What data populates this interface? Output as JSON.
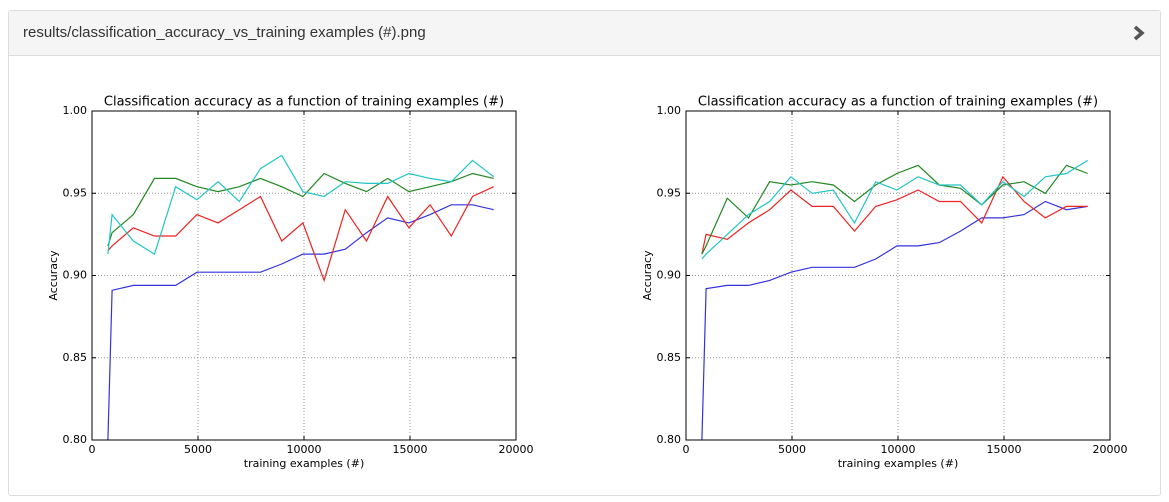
{
  "header": {
    "title": "results/classification_accuracy_vs_training examples (#).png"
  },
  "chart_data": [
    {
      "type": "line",
      "title": "Classification accuracy as a function of training examples (#)",
      "x_label": "training examples (#)",
      "y_label": "Accuracy",
      "x": [
        750,
        950,
        1950,
        2950,
        3950,
        4950,
        5950,
        6950,
        7950,
        8950,
        9950,
        10950,
        11950,
        12950,
        13950,
        14950,
        15950,
        16950,
        17950,
        18950
      ],
      "series": [
        {
          "color": "#3333dd",
          "values": [
            0.8,
            0.891,
            0.894,
            0.894,
            0.894,
            0.902,
            0.902,
            0.902,
            0.902,
            0.907,
            0.913,
            0.913,
            0.916,
            0.926,
            0.935,
            0.932,
            0.937,
            0.943,
            0.943,
            0.94
          ]
        },
        {
          "color": "#ee2222",
          "values": [
            0.915,
            0.918,
            0.929,
            0.924,
            0.924,
            0.937,
            0.932,
            0.94,
            0.948,
            0.921,
            0.932,
            0.897,
            0.94,
            0.921,
            0.948,
            0.929,
            0.943,
            0.924,
            0.948,
            0.954
          ]
        },
        {
          "color": "#228822",
          "values": [
            0.918,
            0.926,
            0.937,
            0.959,
            0.959,
            0.954,
            0.951,
            0.954,
            0.959,
            0.954,
            0.948,
            0.962,
            0.956,
            0.951,
            0.959,
            0.951,
            0.954,
            0.957,
            0.962,
            0.959
          ]
        },
        {
          "color": "#22c4c4",
          "values": [
            0.913,
            0.937,
            0.921,
            0.913,
            0.954,
            0.946,
            0.957,
            0.945,
            0.965,
            0.973,
            0.951,
            0.948,
            0.957,
            0.956,
            0.956,
            0.962,
            0.959,
            0.957,
            0.97,
            0.96
          ]
        }
      ],
      "xlim": [
        0,
        20000
      ],
      "xticks": [
        0,
        5000,
        10000,
        15000,
        20000
      ],
      "ylim": [
        0.8,
        1.0
      ],
      "yticks": [
        {
          "value": 0.8,
          "label": "0.80"
        },
        0.85,
        {
          "value": 0.9,
          "label": "0.90"
        },
        0.95,
        {
          "value": 1.0,
          "label": "1.00"
        }
      ],
      "grid": true
    },
    {
      "type": "line",
      "title": "Classification accuracy as a function of training examples (#)",
      "x_label": "training examples (#)",
      "y_label": "Accuracy",
      "x": [
        750,
        950,
        1950,
        2950,
        3950,
        4950,
        5950,
        6950,
        7950,
        8950,
        9950,
        10950,
        11950,
        12950,
        13950,
        14950,
        15950,
        16950,
        17950,
        18950
      ],
      "series": [
        {
          "color": "#3333dd",
          "values": [
            0.8,
            0.892,
            0.894,
            0.894,
            0.897,
            0.902,
            0.905,
            0.905,
            0.905,
            0.91,
            0.918,
            0.918,
            0.92,
            0.927,
            0.935,
            0.935,
            0.937,
            0.945,
            0.94,
            0.942
          ]
        },
        {
          "color": "#ee2222",
          "values": [
            0.913,
            0.925,
            0.922,
            0.932,
            0.94,
            0.952,
            0.942,
            0.942,
            0.927,
            0.942,
            0.946,
            0.952,
            0.945,
            0.945,
            0.932,
            0.96,
            0.945,
            0.935,
            0.942,
            0.942
          ]
        },
        {
          "color": "#228822",
          "values": [
            0.913,
            0.918,
            0.947,
            0.935,
            0.957,
            0.955,
            0.957,
            0.955,
            0.945,
            0.955,
            0.962,
            0.967,
            0.955,
            0.953,
            0.943,
            0.955,
            0.957,
            0.95,
            0.967,
            0.962
          ]
        },
        {
          "color": "#22c4c4",
          "values": [
            0.91,
            0.913,
            0.925,
            0.937,
            0.945,
            0.96,
            0.95,
            0.952,
            0.932,
            0.957,
            0.952,
            0.96,
            0.955,
            0.955,
            0.943,
            0.957,
            0.948,
            0.96,
            0.962,
            0.97
          ]
        }
      ],
      "xlim": [
        0,
        20000
      ],
      "xticks": [
        0,
        5000,
        10000,
        15000,
        20000
      ],
      "ylim": [
        0.8,
        1.0
      ],
      "yticks": [
        {
          "value": 0.8,
          "label": "0.80"
        },
        0.85,
        {
          "value": 0.9,
          "label": "0.90"
        },
        0.95,
        {
          "value": 1.0,
          "label": "1.00"
        }
      ],
      "grid": true
    }
  ]
}
